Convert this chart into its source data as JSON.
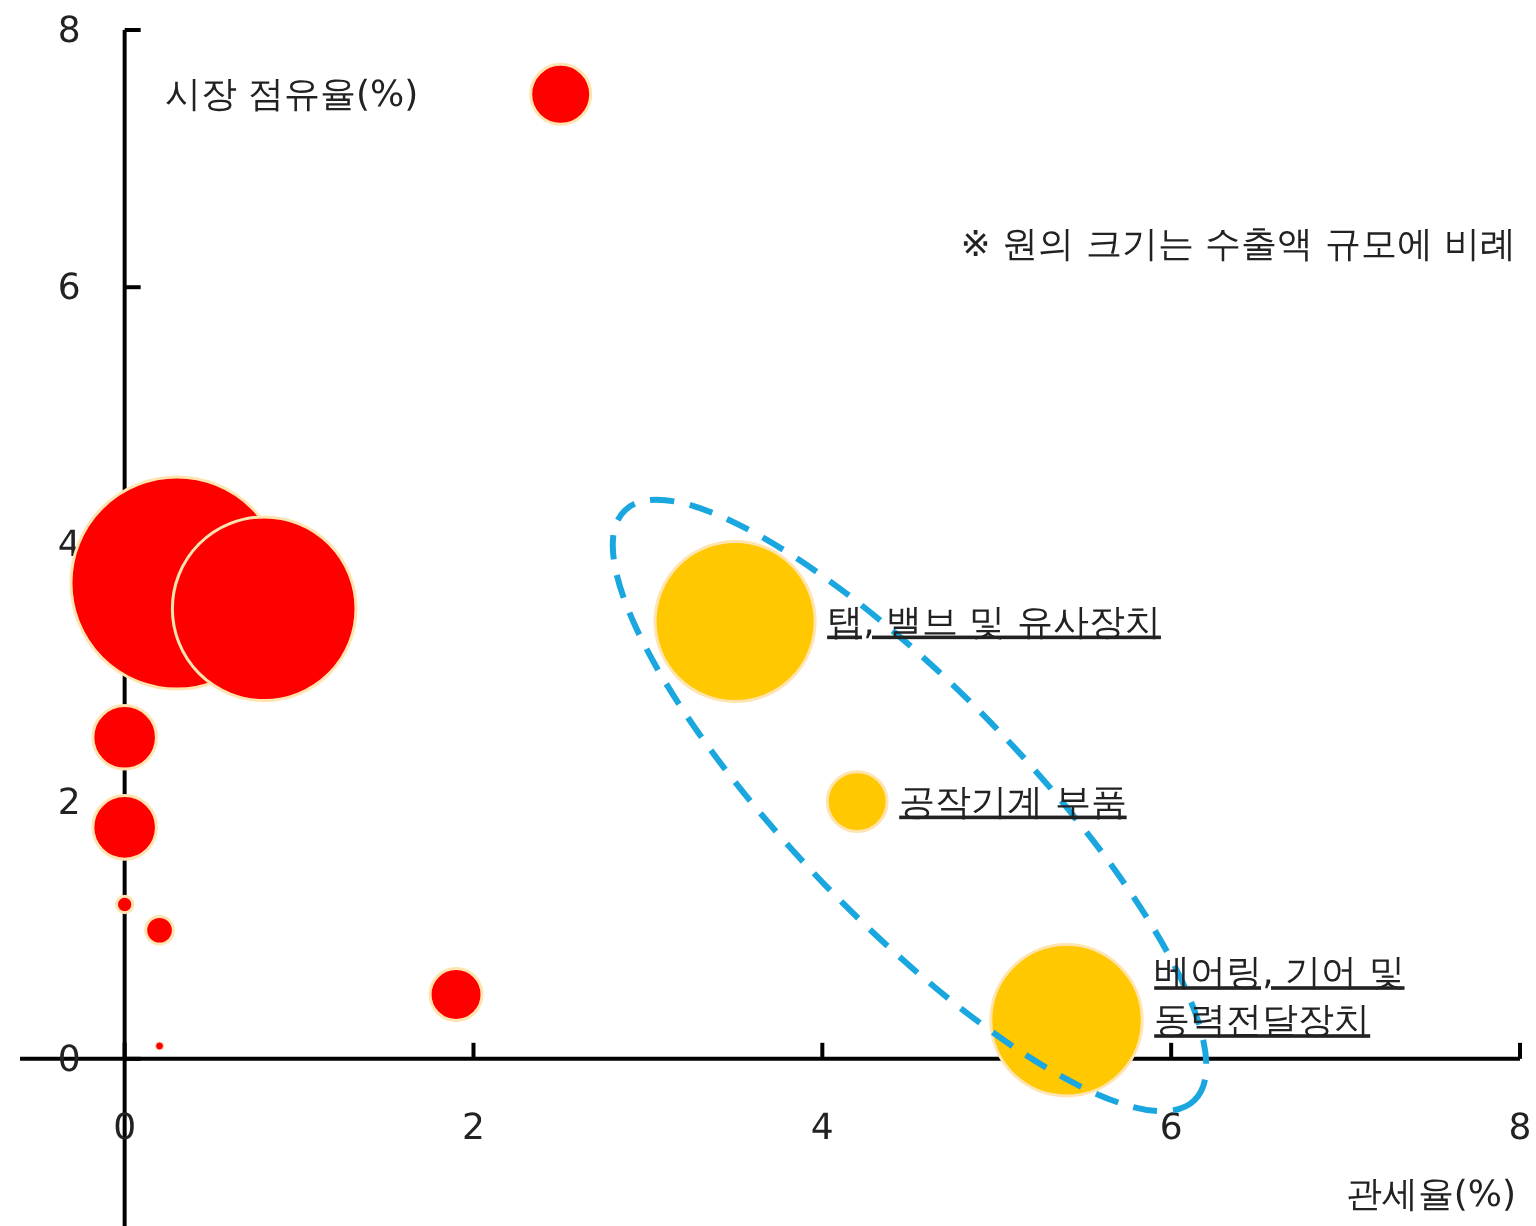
{
  "chart_data": {
    "type": "bubble",
    "xlabel": "관세율(%)",
    "ylabel": "시장 점유율(%)",
    "xlim": [
      -0.6,
      8
    ],
    "ylim": [
      -1.3,
      8
    ],
    "xticks": [
      0,
      2,
      4,
      6,
      8
    ],
    "yticks": [
      0,
      2,
      4,
      6,
      8
    ],
    "grid": false,
    "marker": "circle",
    "series": [
      {
        "color": "#ff0000",
        "x": [
          2.5,
          0.3,
          0.8,
          0,
          0,
          0,
          0.2,
          1.9,
          0.2
        ],
        "values": [
          7.5,
          3.7,
          3.5,
          2.5,
          1.8,
          1.2,
          1.0,
          0.5,
          0.1
        ],
        "sizes": [
          0.08,
          1,
          0.75,
          0.09,
          0.09,
          0.006,
          0.017,
          0.06,
          0.0014
        ]
      },
      {
        "color": "#ffc800",
        "x": [
          3.5,
          4.2,
          5.4
        ],
        "values": [
          3.4,
          2.0,
          0.3
        ],
        "sizes": [
          0.57,
          0.08,
          0.51
        ]
      }
    ],
    "annotations": [
      "※ 원의 크기는 수출액 규모에 비례",
      {
        "text": "탭, 밸브 및 유사장치",
        "x": 3.5,
        "y": 3.4
      },
      {
        "text": "공작기계 부품",
        "x": 4.2,
        "y": 2.0
      },
      {
        "text": "베어링, 기어 및\n동력전달장치",
        "x": 5.4,
        "y": 0.3
      }
    ]
  }
}
